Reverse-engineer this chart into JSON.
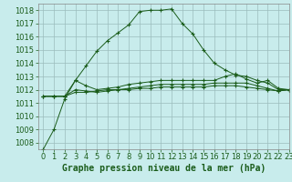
{
  "title": "Graphe pression niveau de la mer (hPa)",
  "background_color": "#c8ecec",
  "grid_color": "#b0c8c8",
  "line_color": "#1a5c1a",
  "xlim": [
    -0.5,
    23
  ],
  "ylim": [
    1007.5,
    1018.5
  ],
  "yticks": [
    1008,
    1009,
    1010,
    1011,
    1012,
    1013,
    1014,
    1015,
    1016,
    1017,
    1018
  ],
  "xticks": [
    0,
    1,
    2,
    3,
    4,
    5,
    6,
    7,
    8,
    9,
    10,
    11,
    12,
    13,
    14,
    15,
    16,
    17,
    18,
    19,
    20,
    21,
    22,
    23
  ],
  "series": [
    [
      1007.5,
      1009.0,
      1011.3,
      1012.7,
      1013.8,
      1014.9,
      1015.7,
      1016.3,
      1016.9,
      1017.9,
      1018.0,
      1018.0,
      1018.1,
      1017.0,
      1016.2,
      1015.0,
      1014.0,
      1013.5,
      1013.1,
      1013.0,
      1012.7,
      1012.5,
      1012.0,
      1012.0
    ],
    [
      1011.5,
      1011.5,
      1011.5,
      1012.7,
      1012.3,
      1012.0,
      1012.1,
      1012.2,
      1012.4,
      1012.5,
      1012.6,
      1012.7,
      1012.7,
      1012.7,
      1012.7,
      1012.7,
      1012.7,
      1013.0,
      1013.2,
      1012.8,
      1012.5,
      1012.7,
      1012.1,
      1012.0
    ],
    [
      1011.5,
      1011.5,
      1011.5,
      1012.0,
      1011.9,
      1011.8,
      1011.9,
      1012.0,
      1012.1,
      1012.2,
      1012.3,
      1012.4,
      1012.4,
      1012.4,
      1012.4,
      1012.4,
      1012.5,
      1012.5,
      1012.5,
      1012.5,
      1012.3,
      1012.1,
      1011.9,
      1012.0
    ],
    [
      1011.5,
      1011.5,
      1011.5,
      1011.8,
      1011.8,
      1011.9,
      1012.0,
      1012.0,
      1012.0,
      1012.1,
      1012.1,
      1012.2,
      1012.2,
      1012.2,
      1012.2,
      1012.2,
      1012.3,
      1012.3,
      1012.3,
      1012.2,
      1012.1,
      1012.0,
      1011.9,
      1012.0
    ]
  ],
  "title_fontsize": 7,
  "tick_fontsize": 6
}
